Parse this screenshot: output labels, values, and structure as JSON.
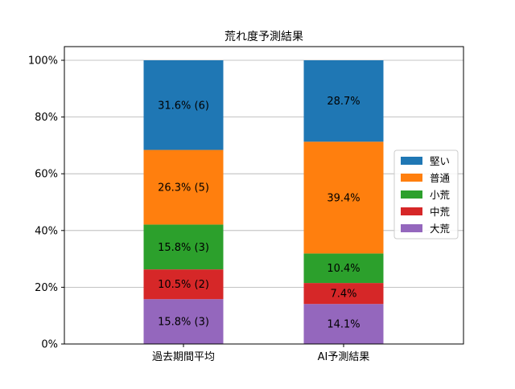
{
  "chart_data": {
    "type": "bar",
    "stacked": true,
    "title": "荒れ度予測結果",
    "xlabel": "",
    "ylabel": "",
    "categories": [
      "過去期間平均",
      "AI予測結果"
    ],
    "ylim": [
      0,
      100
    ],
    "yticks": [
      0,
      20,
      40,
      60,
      80,
      100
    ],
    "ytick_labels": [
      "0%",
      "20%",
      "40%",
      "60%",
      "80%",
      "100%"
    ],
    "grid": true,
    "legend_position": "right",
    "series": [
      {
        "name": "大荒",
        "color": "#9467bd",
        "values": [
          15.8,
          14.1
        ],
        "labels": [
          "15.8% (3)",
          "14.1%"
        ]
      },
      {
        "name": "中荒",
        "color": "#d62728",
        "values": [
          10.5,
          7.4
        ],
        "labels": [
          "10.5% (2)",
          "7.4%"
        ]
      },
      {
        "name": "小荒",
        "color": "#2ca02c",
        "values": [
          15.8,
          10.4
        ],
        "labels": [
          "15.8% (3)",
          "10.4%"
        ]
      },
      {
        "name": "普通",
        "color": "#ff7f0e",
        "values": [
          26.3,
          39.4
        ],
        "labels": [
          "26.3% (5)",
          "39.4%"
        ]
      },
      {
        "name": "堅い",
        "color": "#1f77b4",
        "values": [
          31.6,
          28.7
        ],
        "labels": [
          "31.6% (6)",
          "28.7%"
        ]
      }
    ],
    "legend_order": [
      "堅い",
      "普通",
      "小荒",
      "中荒",
      "大荒"
    ]
  }
}
